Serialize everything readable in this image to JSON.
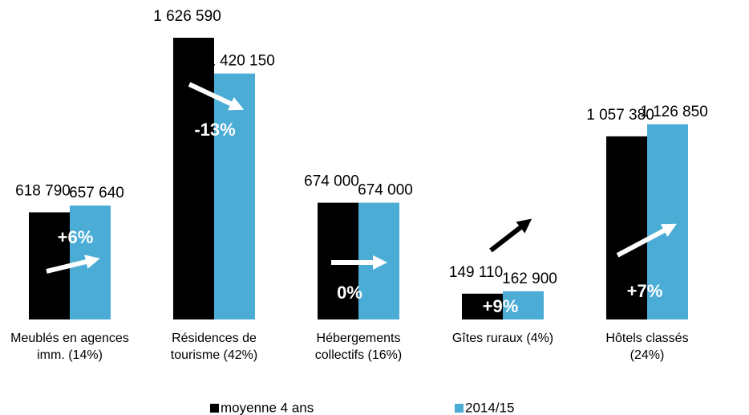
{
  "chart_data": {
    "type": "bar",
    "categories": [
      "Meublés en agences imm. (14%)",
      "Résidences de tourisme (42%)",
      "Hébergements collectifs (16%)",
      "Gîtes ruraux (4%)",
      "Hôtels classés (24%)"
    ],
    "series": [
      {
        "name": "moyenne 4 ans",
        "color": "#000000",
        "values": [
          618790,
          1626590,
          674000,
          149110,
          1057380
        ],
        "value_labels": [
          "618 790",
          "1 626 590",
          "674 000",
          "149 110",
          "1 057 380"
        ]
      },
      {
        "name": "2014/15",
        "color": "#4bacd6",
        "values": [
          657640,
          1420150,
          674000,
          162900,
          1126850
        ],
        "value_labels": [
          "657 640",
          "1 420 150",
          "674 000",
          "162 900",
          "1 126 850"
        ]
      }
    ],
    "annotations": [
      "+6%",
      "-13%",
      "0%",
      "+9%",
      "+7%"
    ],
    "ylim": [
      0,
      1650000
    ],
    "legend": "bottom"
  }
}
